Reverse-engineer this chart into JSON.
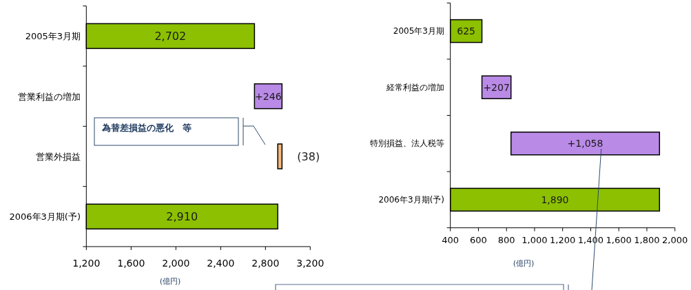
{
  "chart_data": [
    {
      "type": "bar",
      "orientation": "horizontal",
      "categories": [
        "2005年3月期",
        "営業利益の増加",
        "営業外損益",
        "2006年3月期(予)"
      ],
      "values": [
        2702,
        246,
        -38,
        2910
      ],
      "base": [
        null,
        2702,
        2948,
        null
      ],
      "colors": [
        "#8cc000",
        "#b98ae6",
        "#f3b77c",
        "#8cc000"
      ],
      "value_labels": [
        "2,702",
        "+246",
        "(38)",
        "2,910"
      ],
      "xlim": [
        1200,
        3200
      ],
      "xticks": [
        {
          "value": 1200,
          "label": "1,200"
        },
        {
          "value": 1600,
          "label": "1,600"
        },
        {
          "value": 2000,
          "label": "2,000"
        },
        {
          "value": 2400,
          "label": "2,400"
        },
        {
          "value": 2800,
          "label": "2,800"
        },
        {
          "value": 3200,
          "label": "3,200"
        }
      ],
      "xlabel": "(億円)",
      "annotations": [
        "為替差損益の悪化　等"
      ]
    },
    {
      "type": "bar",
      "orientation": "horizontal",
      "categories": [
        "2005年3月期",
        "経常利益の増加",
        "特別損益、法人税等",
        "2006年3月期(予)"
      ],
      "values": [
        625,
        207,
        1058,
        1890
      ],
      "base": [
        null,
        625,
        832,
        null
      ],
      "colors": [
        "#8cc000",
        "#b98ae6",
        "#b98ae6",
        "#8cc000"
      ],
      "value_labels": [
        "625",
        "+207",
        "+1,058",
        "1,890"
      ],
      "xlim": [
        400,
        2000
      ],
      "xticks": [
        400,
        600,
        800,
        {
          "value": 1000,
          "label": "1,000"
        },
        {
          "value": 1200,
          "label": "1,200"
        },
        {
          "value": 1400,
          "label": "1,400"
        },
        {
          "value": 1600,
          "label": "1,600"
        },
        {
          "value": 1800,
          "label": "1,800"
        },
        {
          "value": 2000,
          "label": "2,000"
        }
      ],
      "xlabel": "(億円)"
    }
  ]
}
